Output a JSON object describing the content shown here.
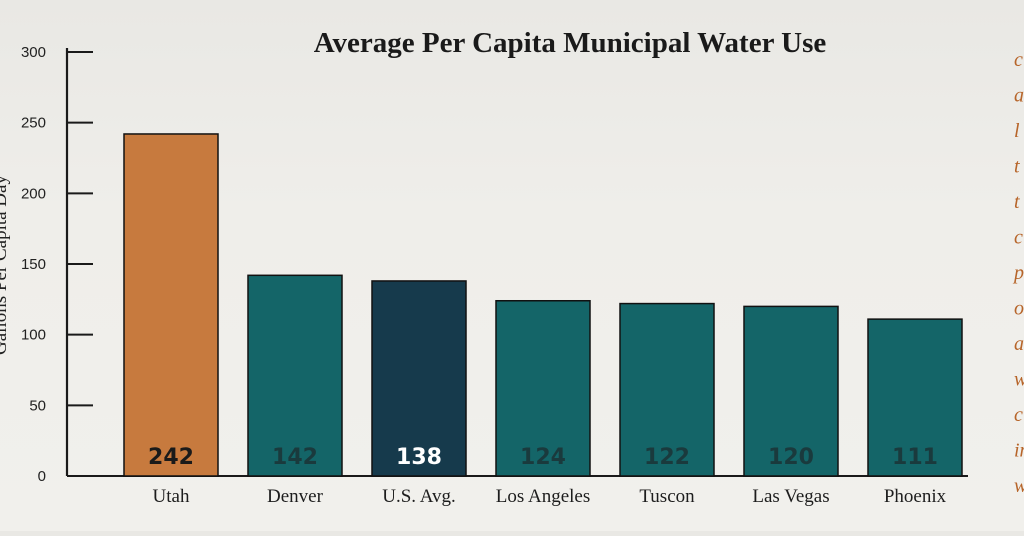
{
  "chart_data": {
    "type": "bar",
    "title": "Average Per Capita Municipal Water Use",
    "ylabel": "Gallons Per Capita Day",
    "xlabel": "",
    "ylim": [
      0,
      300
    ],
    "yticks": [
      0,
      50,
      100,
      150,
      200,
      250,
      300
    ],
    "categories": [
      "Utah",
      "Denver",
      "U.S. Avg.",
      "Los Angeles",
      "Tuscon",
      "Las Vegas",
      "Phoenix"
    ],
    "values": [
      242,
      142,
      138,
      124,
      122,
      120,
      111
    ],
    "value_labels": [
      "242",
      "142",
      "138",
      "124",
      "122",
      "120",
      "111"
    ],
    "bar_colors": [
      "#c77a3e",
      "#146568",
      "#163a4c",
      "#146568",
      "#146568",
      "#146568",
      "#146568"
    ],
    "value_label_colors": [
      "#1a1a1a",
      "#1a3a3d",
      "#ffffff",
      "#1a3a3d",
      "#1a3a3d",
      "#1a3a3d",
      "#1a3a3d"
    ],
    "grid": false
  },
  "side_text": {
    "letters": [
      "c",
      "a",
      "l",
      "t",
      "t",
      "c",
      "p",
      "o",
      "a",
      "w",
      "c",
      "in",
      "w"
    ]
  }
}
